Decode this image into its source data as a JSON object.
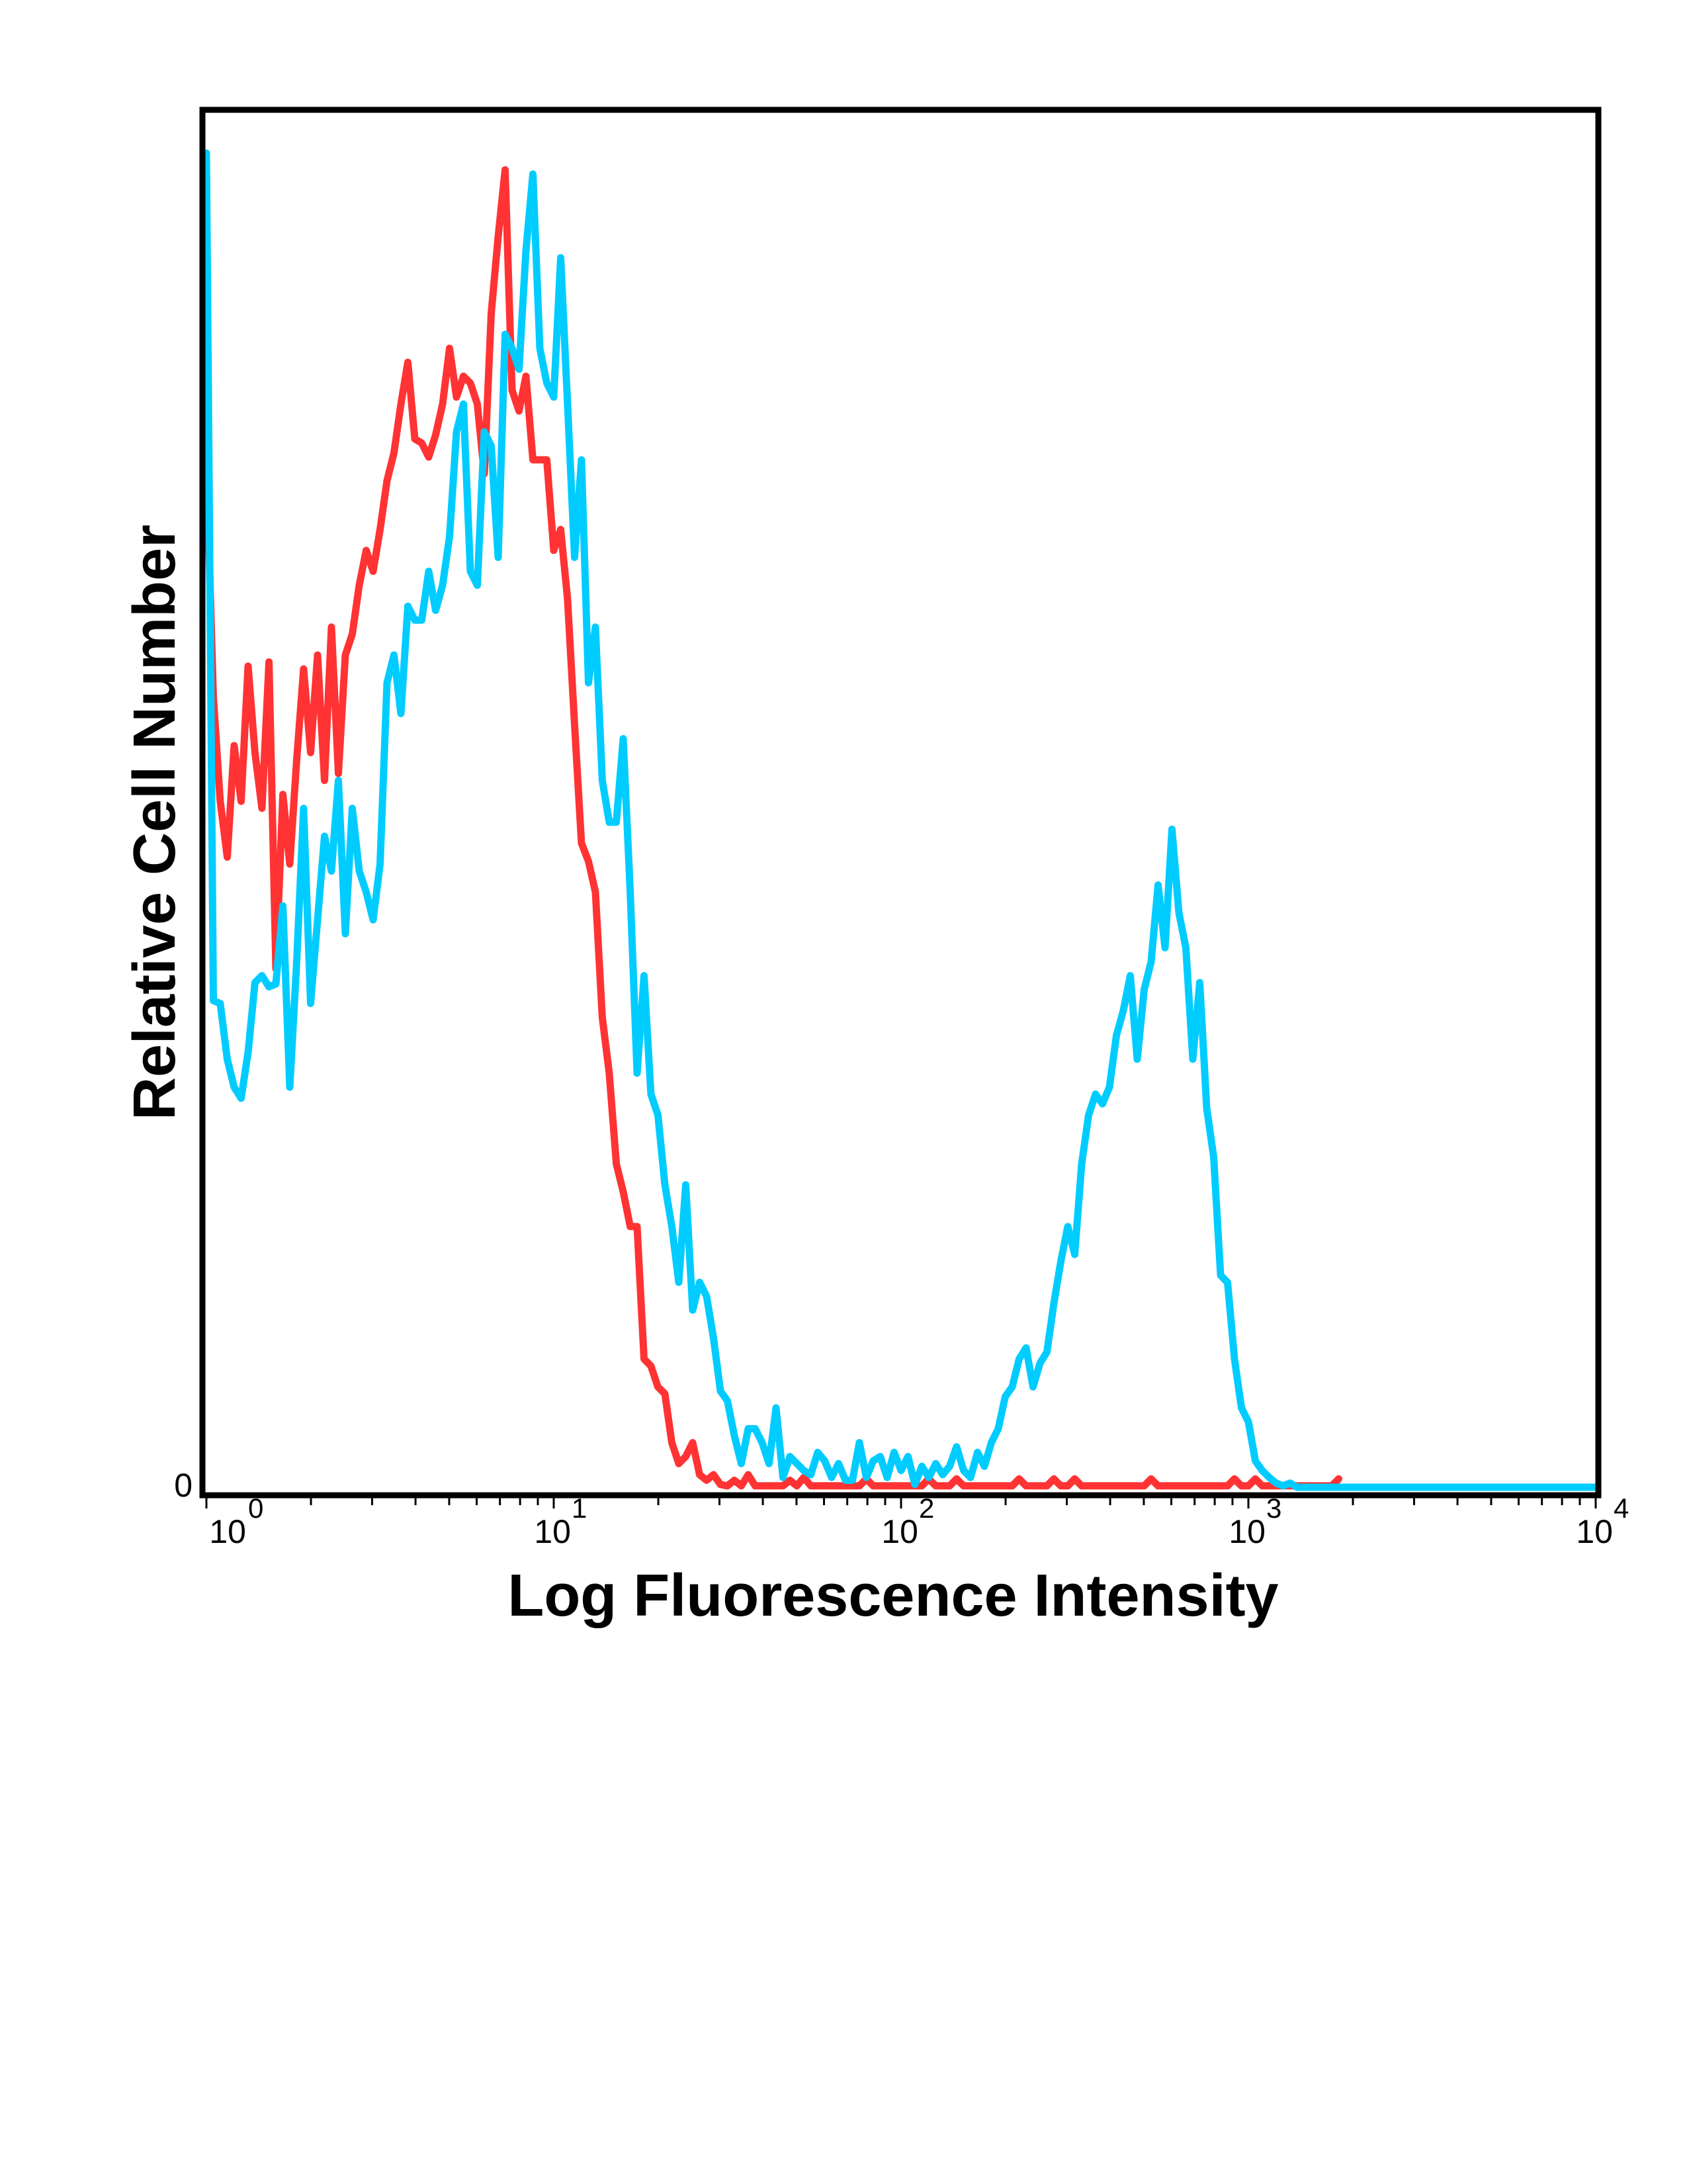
{
  "chart_data": {
    "type": "line",
    "title": "",
    "xlabel": "Log Fluorescence Intensity",
    "ylabel": "Relative Cell Number",
    "x_scale": "log",
    "xlim": [
      1,
      10000
    ],
    "ylim": [
      0,
      99
    ],
    "grid": false,
    "legend": "none",
    "x_ticks": [
      {
        "base": "10",
        "exp": "0",
        "value": 1
      },
      {
        "base": "10",
        "exp": "1",
        "value": 10
      },
      {
        "base": "10",
        "exp": "2",
        "value": 100
      },
      {
        "base": "10",
        "exp": "3",
        "value": 1000
      },
      {
        "base": "10",
        "exp": "4",
        "value": 10000
      }
    ],
    "y_ticks": [
      {
        "label": "0",
        "value": 0
      }
    ],
    "x": [
      1,
      1.047,
      1.096,
      1.148,
      1.202,
      1.259,
      1.318,
      1.38,
      1.445,
      1.514,
      1.585,
      1.66,
      1.738,
      1.82,
      1.905,
      1.995,
      2.089,
      2.188,
      2.291,
      2.399,
      2.512,
      2.63,
      2.754,
      2.884,
      3.02,
      3.162,
      3.311,
      3.467,
      3.631,
      3.802,
      3.981,
      4.169,
      4.365,
      4.571,
      4.786,
      5.012,
      5.248,
      5.495,
      5.754,
      6.026,
      6.31,
      6.607,
      6.918,
      7.244,
      7.586,
      7.943,
      8.318,
      8.71,
      9.12,
      9.55,
      10,
      10.47,
      10.96,
      11.48,
      12.02,
      12.59,
      13.18,
      13.8,
      14.45,
      15.14,
      15.85,
      16.6,
      17.38,
      18.2,
      19.05,
      19.95,
      20.89,
      21.88,
      22.91,
      23.99,
      25.12,
      26.3,
      27.54,
      28.84,
      30.2,
      31.62,
      33.11,
      34.67,
      36.31,
      38.02,
      39.81,
      41.69,
      43.65,
      45.71,
      47.86,
      50.12,
      52.48,
      54.95,
      57.54,
      60.26,
      63.1,
      66.07,
      69.18,
      72.44,
      75.86,
      79.43,
      83.18,
      87.1,
      91.2,
      95.5,
      100,
      104.7,
      109.6,
      114.8,
      120.2,
      125.9,
      131.8,
      138,
      144.5,
      151.4,
      158.5,
      166,
      173.8,
      182,
      190.5,
      199.5,
      208.9,
      218.8,
      229.1,
      239.9,
      251.2,
      263,
      275.4,
      288.4,
      302,
      316.2,
      331.1,
      346.7,
      363.1,
      380.2,
      398.1,
      416.9,
      436.5,
      457.1,
      478.6,
      501.2,
      524.8,
      549.5,
      575.4,
      602.6,
      631,
      660.7,
      691.8,
      724.4,
      758.6,
      794.3,
      831.8,
      871,
      912,
      955,
      1000,
      1047,
      1096,
      1148,
      1202,
      1259,
      1318,
      1380,
      1445,
      1514,
      1585,
      1660,
      1738,
      1820,
      10000
    ],
    "series": [
      {
        "color": "#FF3333",
        "values": [
          73.8,
          56.8,
          49.3,
          45.3,
          53.3,
          49.3,
          59.0,
          52.8,
          48.8,
          59.3,
          37.3,
          49.8,
          44.8,
          52.3,
          58.8,
          52.8,
          59.8,
          50.8,
          61.8,
          51.3,
          59.8,
          61.3,
          64.8,
          67.3,
          65.8,
          68.8,
          72.3,
          74.3,
          77.8,
          80.8,
          75.3,
          75.0,
          74.0,
          75.6,
          77.8,
          81.8,
          78.3,
          79.8,
          79.3,
          77.8,
          72.8,
          84.3,
          89.8,
          94.6,
          78.8,
          77.3,
          79.8,
          73.8,
          73.8,
          73.8,
          67.3,
          68.8,
          63.8,
          54.8,
          46.3,
          45.0,
          42.8,
          33.8,
          29.8,
          23.3,
          21.3,
          18.8,
          18.8,
          9.3,
          8.8,
          7.3,
          6.8,
          3.3,
          1.8,
          2.3,
          3.3,
          1.0,
          0.6,
          1.0,
          0.3,
          0.2,
          0.6,
          0.2,
          1.0,
          0.2,
          0.2,
          0.2,
          0.2,
          0.2,
          0.6,
          0.2,
          0.8,
          0.2,
          0.2,
          0.2,
          0.2,
          0.2,
          0.2,
          0.2,
          0.2,
          0.7,
          0.2,
          0.2,
          0.2,
          0.2,
          0.2,
          0.2,
          0.2,
          0.2,
          0.7,
          0.2,
          0.2,
          0.2,
          0.7,
          0.2,
          0.2,
          0.2,
          0.2,
          0.2,
          0.2,
          0.2,
          0.2,
          0.7,
          0.2,
          0.2,
          0.2,
          0.2,
          0.7,
          0.2,
          0.2,
          0.7,
          0.2,
          0.2,
          0.2,
          0.2,
          0.2,
          0.2,
          0.2,
          0.2,
          0.2,
          0.2,
          0.7,
          0.2,
          0.2,
          0.2,
          0.2,
          0.2,
          0.2,
          0.2,
          0.2,
          0.2,
          0.2,
          0.2,
          0.7,
          0.2,
          0.2,
          0.7,
          0.2,
          0.2,
          0.2,
          0.2,
          0.2,
          0.2,
          0.2,
          0.2,
          0.2,
          0.2,
          0.2,
          0.7,
          null
        ]
      },
      {
        "color": "#00CCFF",
        "values": [
          95.8,
          35.0,
          34.8,
          30.8,
          28.8,
          28.0,
          31.3,
          36.3,
          36.8,
          36.0,
          36.2,
          41.8,
          28.8,
          37.8,
          48.8,
          34.8,
          40.8,
          46.8,
          44.3,
          50.8,
          39.8,
          48.8,
          44.3,
          42.8,
          40.8,
          44.8,
          57.8,
          59.8,
          55.6,
          63.3,
          62.3,
          62.3,
          65.8,
          63.0,
          64.8,
          68.3,
          75.8,
          77.8,
          65.8,
          64.8,
          75.8,
          74.8,
          66.8,
          82.8,
          81.8,
          80.3,
          88.8,
          94.3,
          81.8,
          79.3,
          78.3,
          88.3,
          77.8,
          66.8,
          73.8,
          57.8,
          61.8,
          50.8,
          47.8,
          47.8,
          53.8,
          42.8,
          29.8,
          36.8,
          28.3,
          26.8,
          21.8,
          18.8,
          14.8,
          21.8,
          12.8,
          14.8,
          13.8,
          10.8,
          7.0,
          6.3,
          3.8,
          1.8,
          4.3,
          4.3,
          3.3,
          1.8,
          5.8,
          0.8,
          2.3,
          1.8,
          1.3,
          1.0,
          2.6,
          2.0,
          0.8,
          1.8,
          0.6,
          0.6,
          3.3,
          0.8,
          2.0,
          2.3,
          0.8,
          2.6,
          1.3,
          2.3,
          0.3,
          1.6,
          0.8,
          1.8,
          1.0,
          1.6,
          3.0,
          1.3,
          0.8,
          2.6,
          1.6,
          3.3,
          4.3,
          6.6,
          7.3,
          9.3,
          10.1,
          7.3,
          9.0,
          9.8,
          13.3,
          16.3,
          18.8,
          16.8,
          23.3,
          26.8,
          28.3,
          27.6,
          28.8,
          32.5,
          34.3,
          36.8,
          30.8,
          35.8,
          37.8,
          43.3,
          38.8,
          47.3,
          41.3,
          38.8,
          30.8,
          36.3,
          27.3,
          23.8,
          15.3,
          14.8,
          9.3,
          5.8,
          4.8,
          2.0,
          1.3,
          0.8,
          0.4,
          0.2,
          0.4,
          0.1,
          0.1,
          0.1,
          0.1,
          0.1,
          0.1,
          0.1,
          0.1
        ]
      }
    ]
  }
}
